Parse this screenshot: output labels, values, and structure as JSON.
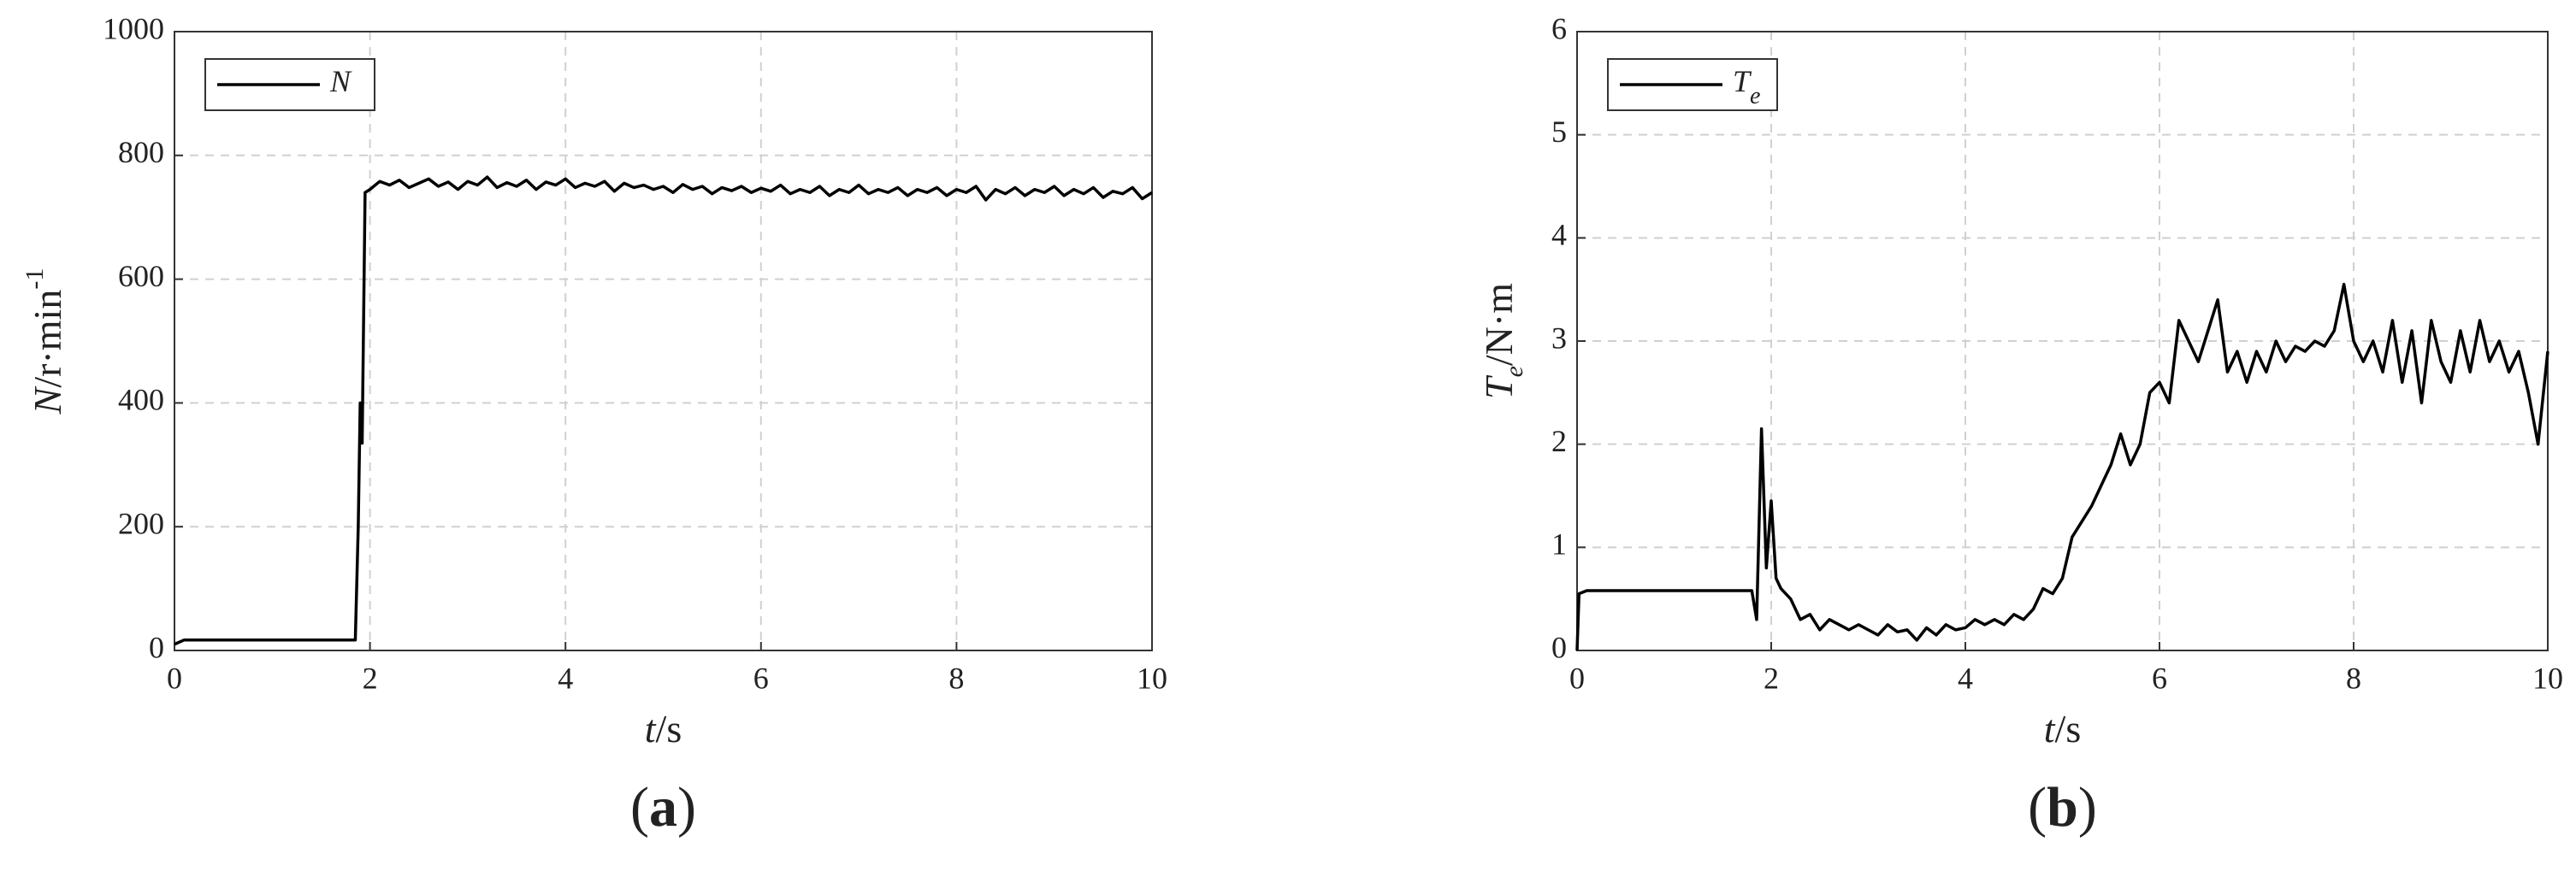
{
  "chart_data": [
    {
      "type": "line",
      "label": "(a)",
      "x_label": [
        {
          "text": "t",
          "style": "italic"
        },
        {
          "text": "/s",
          "style": "normal"
        }
      ],
      "y_label": [
        {
          "text": "N",
          "style": "italic"
        },
        {
          "text": "/r·min",
          "style": "normal"
        },
        {
          "text": "-1",
          "style": "sup"
        }
      ],
      "xlim": [
        0,
        10
      ],
      "xticks": [
        0,
        2,
        4,
        6,
        8,
        10
      ],
      "ylim": [
        0,
        1000
      ],
      "yticks": [
        0,
        200,
        400,
        600,
        800,
        1000
      ],
      "grid": true,
      "legend": "upper left",
      "x": [
        0,
        0.1,
        0.2,
        0.3,
        0.4,
        0.5,
        0.6,
        0.7,
        0.8,
        0.9,
        1,
        1.1,
        1.2,
        1.3,
        1.4,
        1.5,
        1.6,
        1.7,
        1.8,
        1.85,
        1.88,
        1.9,
        1.92,
        1.95,
        2,
        2.1,
        2.2,
        2.3,
        2.4,
        2.5,
        2.6,
        2.7,
        2.8,
        2.9,
        3,
        3.1,
        3.2,
        3.3,
        3.4,
        3.5,
        3.6,
        3.7,
        3.8,
        3.9,
        4,
        4.1,
        4.2,
        4.3,
        4.4,
        4.5,
        4.6,
        4.7,
        4.8,
        4.9,
        5,
        5.1,
        5.2,
        5.3,
        5.4,
        5.5,
        5.6,
        5.7,
        5.8,
        5.9,
        6,
        6.1,
        6.2,
        6.3,
        6.4,
        6.5,
        6.6,
        6.7,
        6.8,
        6.9,
        7,
        7.1,
        7.2,
        7.3,
        7.4,
        7.5,
        7.6,
        7.7,
        7.8,
        7.9,
        8,
        8.1,
        8.2,
        8.3,
        8.4,
        8.5,
        8.6,
        8.7,
        8.8,
        8.9,
        9,
        9.1,
        9.2,
        9.3,
        9.4,
        9.5,
        9.6,
        9.7,
        9.8,
        9.9,
        10
      ],
      "series": [
        {
          "name": "N",
          "color": "#000000",
          "values": [
            10,
            17,
            17,
            17,
            17,
            17,
            17,
            17,
            17,
            17,
            17,
            17,
            17,
            17,
            17,
            17,
            17,
            17,
            17,
            17,
            200,
            400,
            335,
            740,
            745,
            758,
            752,
            760,
            748,
            755,
            762,
            750,
            757,
            745,
            758,
            752,
            765,
            748,
            756,
            750,
            760,
            745,
            757,
            752,
            762,
            748,
            755,
            750,
            758,
            742,
            755,
            748,
            752,
            745,
            750,
            740,
            753,
            745,
            750,
            738,
            748,
            743,
            750,
            740,
            747,
            742,
            752,
            738,
            745,
            740,
            750,
            735,
            745,
            740,
            752,
            738,
            745,
            740,
            748,
            735,
            745,
            740,
            748,
            735,
            745,
            740,
            750,
            728,
            745,
            738,
            748,
            735,
            745,
            740,
            750,
            735,
            745,
            738,
            748,
            732,
            742,
            738,
            748,
            730,
            740
          ]
        }
      ]
    },
    {
      "type": "line",
      "label": "(b)",
      "x_label": [
        {
          "text": "t",
          "style": "italic"
        },
        {
          "text": "/s",
          "style": "normal"
        }
      ],
      "y_label": [
        {
          "text": "T",
          "style": "italic"
        },
        {
          "text": "e",
          "style": "sub"
        },
        {
          "text": "/N·m",
          "style": "normal"
        }
      ],
      "xlim": [
        0,
        10
      ],
      "xticks": [
        0,
        2,
        4,
        6,
        8,
        10
      ],
      "ylim": [
        0,
        6
      ],
      "yticks": [
        0,
        1,
        2,
        3,
        4,
        5,
        6
      ],
      "grid": true,
      "legend": "upper left",
      "x": [
        0,
        0.02,
        0.1,
        0.2,
        0.3,
        0.4,
        0.5,
        0.6,
        0.7,
        0.8,
        0.9,
        1,
        1.1,
        1.2,
        1.3,
        1.4,
        1.5,
        1.6,
        1.7,
        1.8,
        1.85,
        1.9,
        1.95,
        2,
        2.05,
        2.1,
        2.2,
        2.3,
        2.4,
        2.5,
        2.6,
        2.7,
        2.8,
        2.9,
        3,
        3.1,
        3.2,
        3.3,
        3.4,
        3.5,
        3.6,
        3.7,
        3.8,
        3.9,
        4,
        4.1,
        4.2,
        4.3,
        4.4,
        4.5,
        4.6,
        4.7,
        4.8,
        4.9,
        5,
        5.1,
        5.2,
        5.3,
        5.4,
        5.5,
        5.6,
        5.7,
        5.8,
        5.9,
        6,
        6.1,
        6.2,
        6.3,
        6.4,
        6.5,
        6.6,
        6.7,
        6.8,
        6.9,
        7,
        7.1,
        7.2,
        7.3,
        7.4,
        7.5,
        7.6,
        7.7,
        7.8,
        7.9,
        8,
        8.1,
        8.2,
        8.3,
        8.4,
        8.5,
        8.6,
        8.7,
        8.8,
        8.9,
        9,
        9.1,
        9.2,
        9.3,
        9.4,
        9.5,
        9.6,
        9.7,
        9.8,
        9.9,
        10
      ],
      "series": [
        {
          "name": "Te",
          "color": "#000000",
          "values": [
            0,
            0.55,
            0.58,
            0.58,
            0.58,
            0.58,
            0.58,
            0.58,
            0.58,
            0.58,
            0.58,
            0.58,
            0.58,
            0.58,
            0.58,
            0.58,
            0.58,
            0.58,
            0.58,
            0.58,
            0.3,
            2.15,
            0.8,
            1.45,
            0.7,
            0.6,
            0.5,
            0.3,
            0.35,
            0.2,
            0.3,
            0.25,
            0.2,
            0.25,
            0.2,
            0.15,
            0.25,
            0.18,
            0.2,
            0.1,
            0.22,
            0.15,
            0.25,
            0.2,
            0.22,
            0.3,
            0.25,
            0.3,
            0.25,
            0.35,
            0.3,
            0.4,
            0.6,
            0.55,
            0.7,
            1.1,
            1.25,
            1.4,
            1.6,
            1.8,
            2.1,
            1.8,
            2.0,
            2.5,
            2.6,
            2.4,
            3.2,
            3.0,
            2.8,
            3.1,
            3.4,
            2.7,
            2.9,
            2.6,
            2.9,
            2.7,
            3.0,
            2.8,
            2.95,
            2.9,
            3.0,
            2.95,
            3.1,
            3.55,
            3.0,
            2.8,
            3.0,
            2.7,
            3.2,
            2.6,
            3.1,
            2.4,
            3.2,
            2.8,
            2.6,
            3.1,
            2.7,
            3.2,
            2.8,
            3.0,
            2.7,
            2.9,
            2.5,
            2.0,
            2.9
          ]
        }
      ]
    }
  ]
}
